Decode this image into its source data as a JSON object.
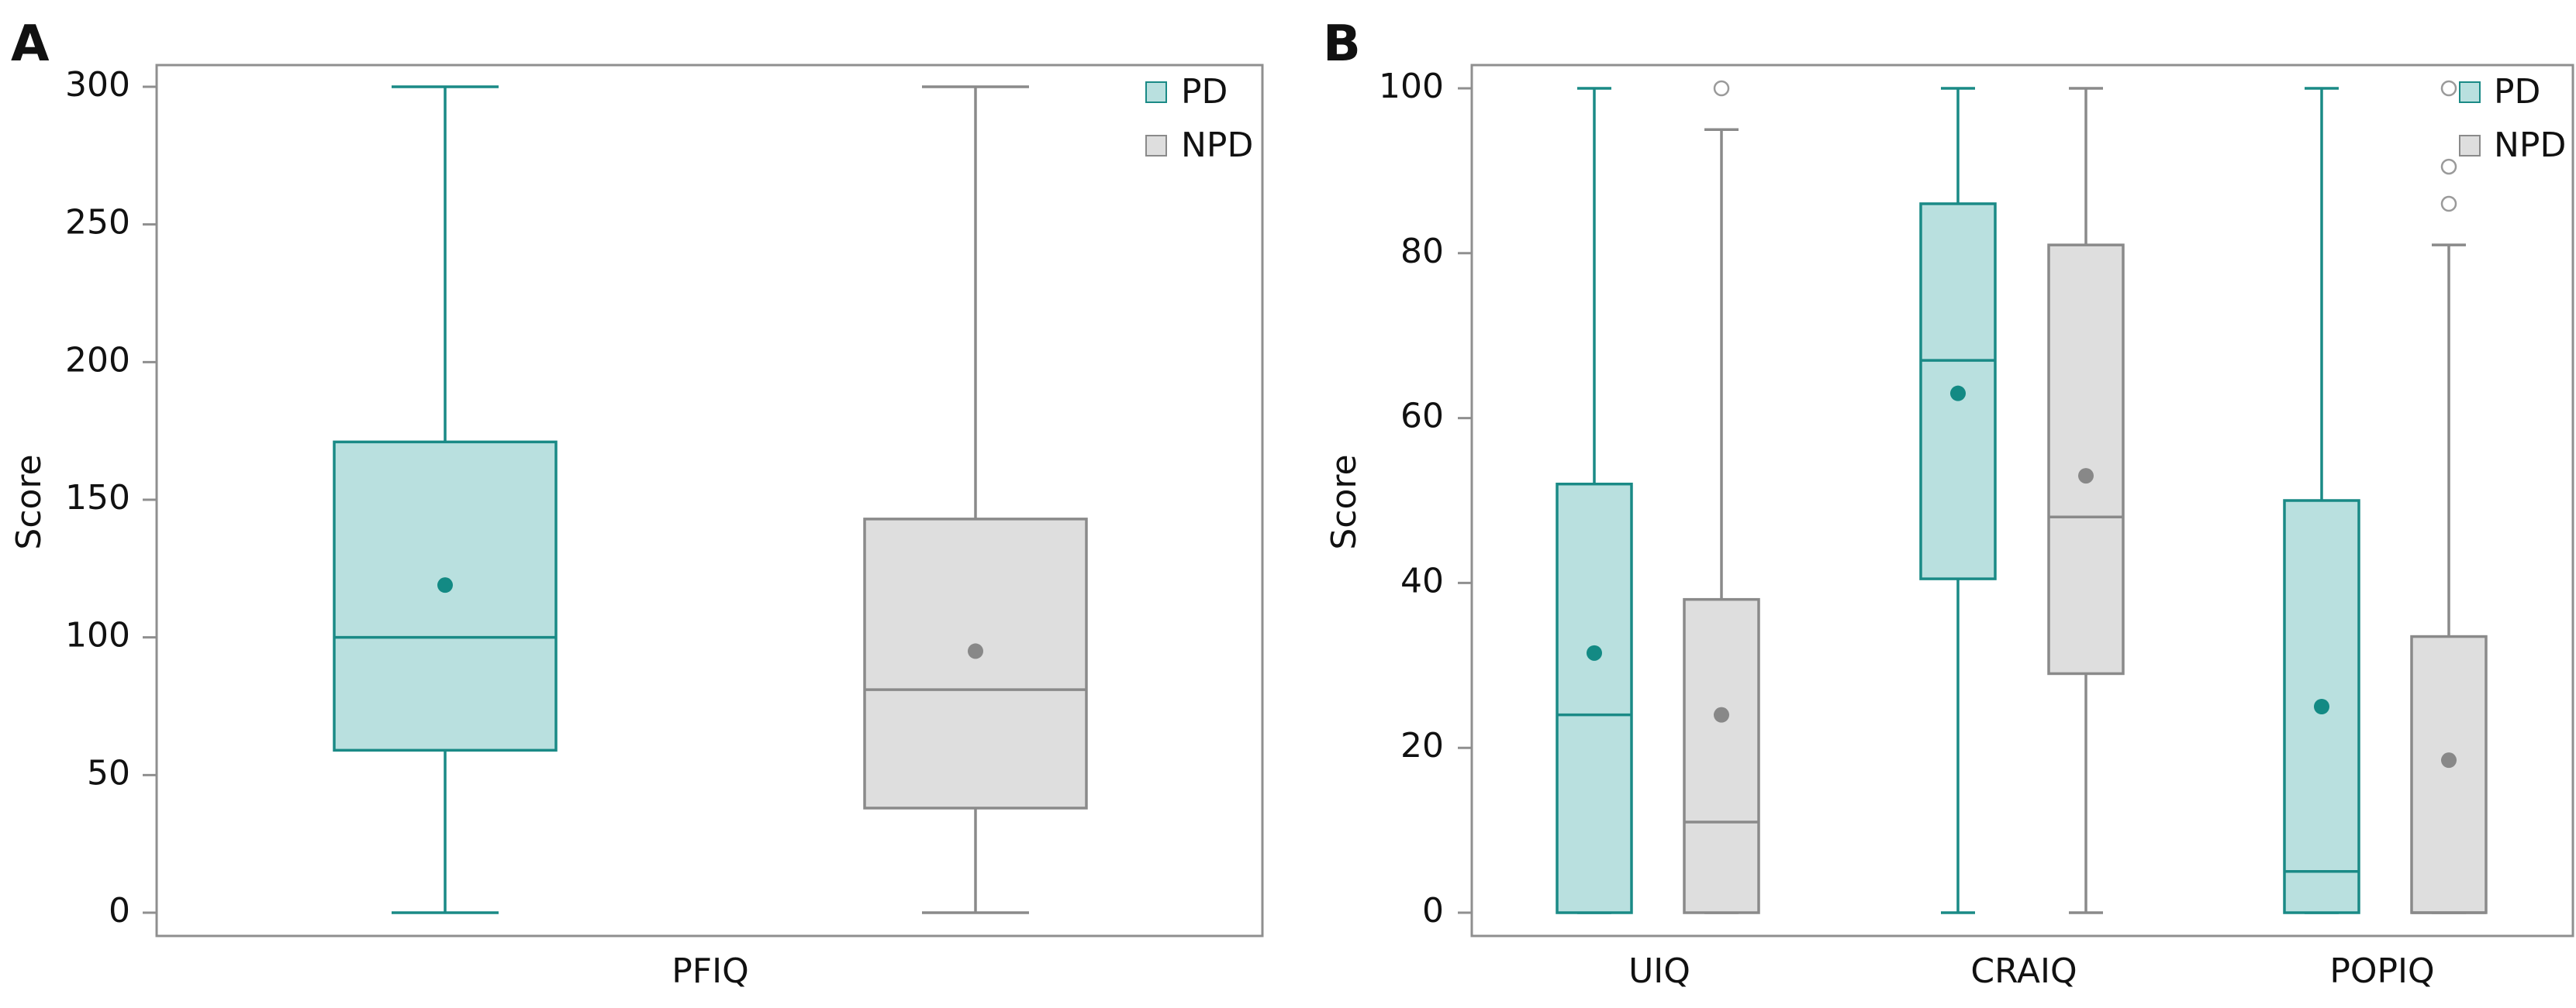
{
  "chart_data": [
    {
      "panel": "A",
      "type": "box",
      "ylabel": "Score",
      "ylim": [
        0,
        300
      ],
      "yticks": [
        0,
        50,
        100,
        150,
        200,
        250,
        300
      ],
      "categories": [
        "PFIQ"
      ],
      "legend": {
        "position": "top-right",
        "entries": [
          {
            "name": "PD",
            "color": "#b9e0df"
          },
          {
            "name": "NPD",
            "color": "#dedede"
          }
        ]
      },
      "series": [
        {
          "name": "PD",
          "stroke": "#1a8a86",
          "fill": "#b9e0df",
          "mean_color": "#138a84",
          "boxes": [
            {
              "category": "PFIQ",
              "min": 0,
              "q1": 59,
              "median": 100,
              "q3": 171,
              "max": 300,
              "mean": 119,
              "outliers": []
            }
          ]
        },
        {
          "name": "NPD",
          "stroke": "#8a8a8a",
          "fill": "#dedede",
          "mean_color": "#888888",
          "boxes": [
            {
              "category": "PFIQ",
              "min": 0,
              "q1": 38,
              "median": 81,
              "q3": 143,
              "max": 300,
              "mean": 95,
              "outliers": []
            }
          ]
        }
      ]
    },
    {
      "panel": "B",
      "type": "box",
      "ylabel": "Score",
      "ylim": [
        0,
        100
      ],
      "yticks": [
        0,
        20,
        40,
        60,
        80,
        100
      ],
      "categories": [
        "UIQ",
        "CRAIQ",
        "POPIQ"
      ],
      "legend": {
        "position": "top-right",
        "entries": [
          {
            "name": "PD",
            "color": "#b9e0df"
          },
          {
            "name": "NPD",
            "color": "#dedede"
          }
        ]
      },
      "series": [
        {
          "name": "PD",
          "stroke": "#1a8a86",
          "fill": "#b9e0df",
          "mean_color": "#138a84",
          "boxes": [
            {
              "category": "UIQ",
              "min": 0,
              "q1": 0,
              "median": 24,
              "q3": 52,
              "max": 100,
              "mean": 31.5,
              "outliers": []
            },
            {
              "category": "CRAIQ",
              "min": 0,
              "q1": 40.5,
              "median": 67,
              "q3": 86,
              "max": 100,
              "mean": 63,
              "outliers": []
            },
            {
              "category": "POPIQ",
              "min": 0,
              "q1": 0,
              "median": 5,
              "q3": 50,
              "max": 100,
              "mean": 25,
              "outliers": []
            }
          ]
        },
        {
          "name": "NPD",
          "stroke": "#8a8a8a",
          "fill": "#dedede",
          "mean_color": "#888888",
          "boxes": [
            {
              "category": "UIQ",
              "min": 0,
              "q1": 0,
              "median": 11,
              "q3": 38,
              "max": 95,
              "mean": 24,
              "outliers": [
                100
              ]
            },
            {
              "category": "CRAIQ",
              "min": 0,
              "q1": 29,
              "median": 48,
              "q3": 81,
              "max": 100,
              "mean": 53,
              "outliers": []
            },
            {
              "category": "POPIQ",
              "min": 0,
              "q1": 0,
              "median": 0,
              "q3": 33.5,
              "max": 81,
              "mean": 18.5,
              "outliers": [
                86,
                90.5,
                100
              ]
            }
          ]
        }
      ]
    }
  ]
}
